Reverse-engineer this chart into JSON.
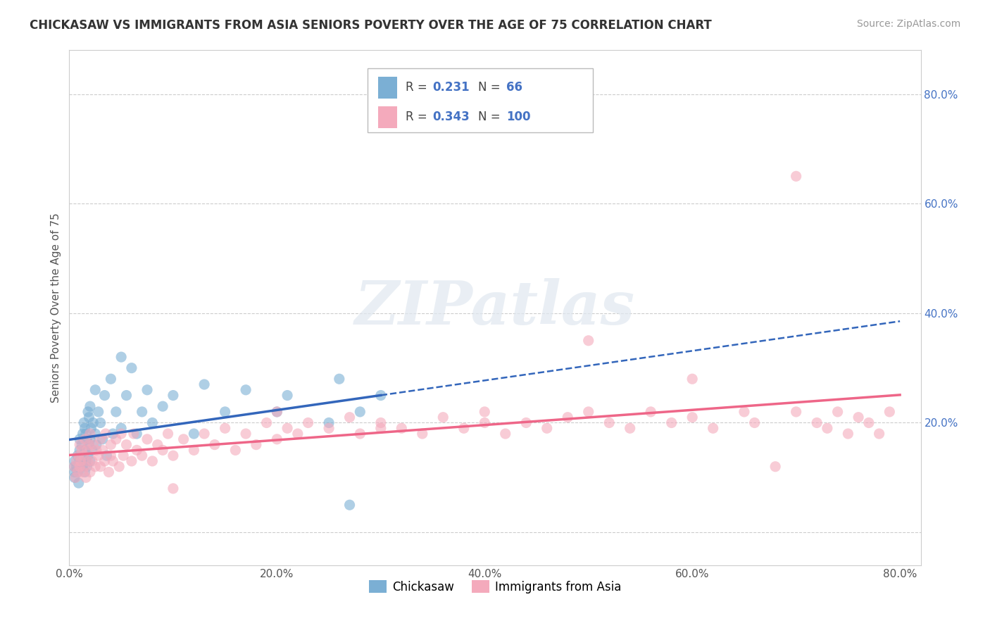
{
  "title": "CHICKASAW VS IMMIGRANTS FROM ASIA SENIORS POVERTY OVER THE AGE OF 75 CORRELATION CHART",
  "source": "Source: ZipAtlas.com",
  "ylabel": "Seniors Poverty Over the Age of 75",
  "xlim": [
    0,
    0.82
  ],
  "ylim": [
    -0.06,
    0.88
  ],
  "xtick_vals": [
    0,
    0.2,
    0.4,
    0.6,
    0.8
  ],
  "xtick_labels": [
    "0.0%",
    "20.0%",
    "40.0%",
    "60.0%",
    "80.0%"
  ],
  "ytick_vals": [
    0.0,
    0.2,
    0.4,
    0.6,
    0.8
  ],
  "ytick_labels": [
    "",
    "",
    "",
    "",
    ""
  ],
  "right_ytick_vals": [
    0.2,
    0.4,
    0.6,
    0.8
  ],
  "right_ytick_labels": [
    "20.0%",
    "40.0%",
    "60.0%",
    "80.0%"
  ],
  "R_blue": 0.231,
  "N_blue": 66,
  "R_pink": 0.343,
  "N_pink": 100,
  "blue_color": "#7BAFD4",
  "pink_color": "#F4AABC",
  "trend_blue_color": "#3366BB",
  "trend_pink_color": "#EE6688",
  "grid_color": "#CCCCCC",
  "bg_color": "#FFFFFF",
  "watermark_text": "ZIPatlas",
  "legend_labels": [
    "Chickasaw",
    "Immigrants from Asia"
  ],
  "blue_scatter_x": [
    0.005,
    0.005,
    0.005,
    0.005,
    0.007,
    0.008,
    0.008,
    0.009,
    0.01,
    0.01,
    0.01,
    0.012,
    0.012,
    0.013,
    0.013,
    0.014,
    0.014,
    0.015,
    0.015,
    0.015,
    0.016,
    0.016,
    0.017,
    0.017,
    0.018,
    0.018,
    0.019,
    0.019,
    0.02,
    0.02,
    0.02,
    0.021,
    0.022,
    0.023,
    0.025,
    0.025,
    0.026,
    0.028,
    0.03,
    0.032,
    0.034,
    0.036,
    0.04,
    0.042,
    0.045,
    0.05,
    0.05,
    0.055,
    0.06,
    0.065,
    0.07,
    0.075,
    0.08,
    0.09,
    0.1,
    0.12,
    0.13,
    0.15,
    0.17,
    0.2,
    0.21,
    0.25,
    0.26,
    0.27,
    0.28,
    0.3
  ],
  "blue_scatter_y": [
    0.1,
    0.11,
    0.12,
    0.13,
    0.12,
    0.11,
    0.14,
    0.09,
    0.13,
    0.15,
    0.17,
    0.13,
    0.16,
    0.12,
    0.18,
    0.14,
    0.2,
    0.11,
    0.15,
    0.19,
    0.13,
    0.18,
    0.12,
    0.17,
    0.14,
    0.22,
    0.16,
    0.21,
    0.13,
    0.17,
    0.23,
    0.19,
    0.15,
    0.2,
    0.18,
    0.26,
    0.16,
    0.22,
    0.2,
    0.17,
    0.25,
    0.14,
    0.28,
    0.18,
    0.22,
    0.19,
    0.32,
    0.25,
    0.3,
    0.18,
    0.22,
    0.26,
    0.2,
    0.23,
    0.25,
    0.18,
    0.27,
    0.22,
    0.26,
    0.22,
    0.25,
    0.2,
    0.28,
    0.05,
    0.22,
    0.25
  ],
  "pink_scatter_x": [
    0.005,
    0.006,
    0.007,
    0.008,
    0.009,
    0.01,
    0.01,
    0.011,
    0.012,
    0.013,
    0.014,
    0.015,
    0.015,
    0.016,
    0.017,
    0.018,
    0.019,
    0.02,
    0.02,
    0.022,
    0.023,
    0.025,
    0.026,
    0.028,
    0.03,
    0.03,
    0.032,
    0.034,
    0.035,
    0.038,
    0.04,
    0.04,
    0.042,
    0.045,
    0.048,
    0.05,
    0.052,
    0.055,
    0.06,
    0.062,
    0.065,
    0.07,
    0.075,
    0.08,
    0.085,
    0.09,
    0.095,
    0.1,
    0.11,
    0.12,
    0.13,
    0.14,
    0.15,
    0.16,
    0.17,
    0.18,
    0.19,
    0.2,
    0.21,
    0.22,
    0.23,
    0.25,
    0.27,
    0.28,
    0.3,
    0.32,
    0.34,
    0.36,
    0.38,
    0.4,
    0.42,
    0.44,
    0.46,
    0.48,
    0.5,
    0.52,
    0.54,
    0.56,
    0.58,
    0.6,
    0.62,
    0.65,
    0.66,
    0.68,
    0.7,
    0.72,
    0.73,
    0.74,
    0.75,
    0.76,
    0.77,
    0.78,
    0.79,
    0.6,
    0.5,
    0.4,
    0.3,
    0.2,
    0.1,
    0.7
  ],
  "pink_scatter_y": [
    0.12,
    0.1,
    0.13,
    0.11,
    0.14,
    0.12,
    0.16,
    0.13,
    0.15,
    0.11,
    0.14,
    0.12,
    0.17,
    0.1,
    0.15,
    0.13,
    0.16,
    0.11,
    0.18,
    0.13,
    0.16,
    0.12,
    0.15,
    0.14,
    0.17,
    0.12,
    0.15,
    0.13,
    0.18,
    0.11,
    0.16,
    0.14,
    0.13,
    0.17,
    0.12,
    0.18,
    0.14,
    0.16,
    0.13,
    0.18,
    0.15,
    0.14,
    0.17,
    0.13,
    0.16,
    0.15,
    0.18,
    0.14,
    0.17,
    0.15,
    0.18,
    0.16,
    0.19,
    0.15,
    0.18,
    0.16,
    0.2,
    0.17,
    0.19,
    0.18,
    0.2,
    0.19,
    0.21,
    0.18,
    0.2,
    0.19,
    0.18,
    0.21,
    0.19,
    0.2,
    0.18,
    0.2,
    0.19,
    0.21,
    0.22,
    0.2,
    0.19,
    0.22,
    0.2,
    0.21,
    0.19,
    0.22,
    0.2,
    0.12,
    0.22,
    0.2,
    0.19,
    0.22,
    0.18,
    0.21,
    0.2,
    0.18,
    0.22,
    0.28,
    0.35,
    0.22,
    0.19,
    0.22,
    0.08,
    0.65
  ]
}
